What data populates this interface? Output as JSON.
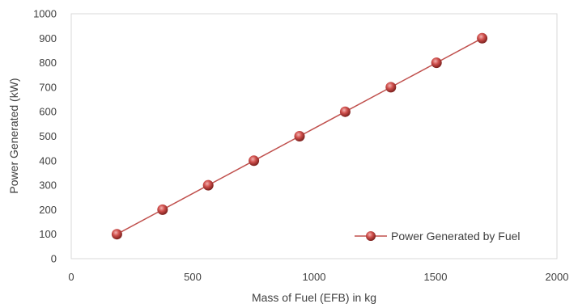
{
  "chart_data": {
    "type": "scatter",
    "title": "",
    "xlabel": "Mass of Fuel (EFB) in kg",
    "ylabel": "Power Generated (kW)",
    "xlim": [
      0,
      2000
    ],
    "ylim": [
      0,
      1000
    ],
    "x_ticks": [
      0,
      500,
      1000,
      1500,
      2000
    ],
    "y_ticks": [
      0,
      100,
      200,
      300,
      400,
      500,
      600,
      700,
      800,
      900,
      1000
    ],
    "grid": false,
    "legend_position": "bottom-right",
    "series": [
      {
        "name": "Power Generated by Fuel",
        "color": "#c0504d",
        "marker": "sphere",
        "line": true,
        "x": [
          188,
          376,
          564,
          752,
          940,
          1128,
          1316,
          1504,
          1692
        ],
        "y": [
          100,
          200,
          300,
          400,
          500,
          600,
          700,
          800,
          900
        ]
      }
    ]
  }
}
